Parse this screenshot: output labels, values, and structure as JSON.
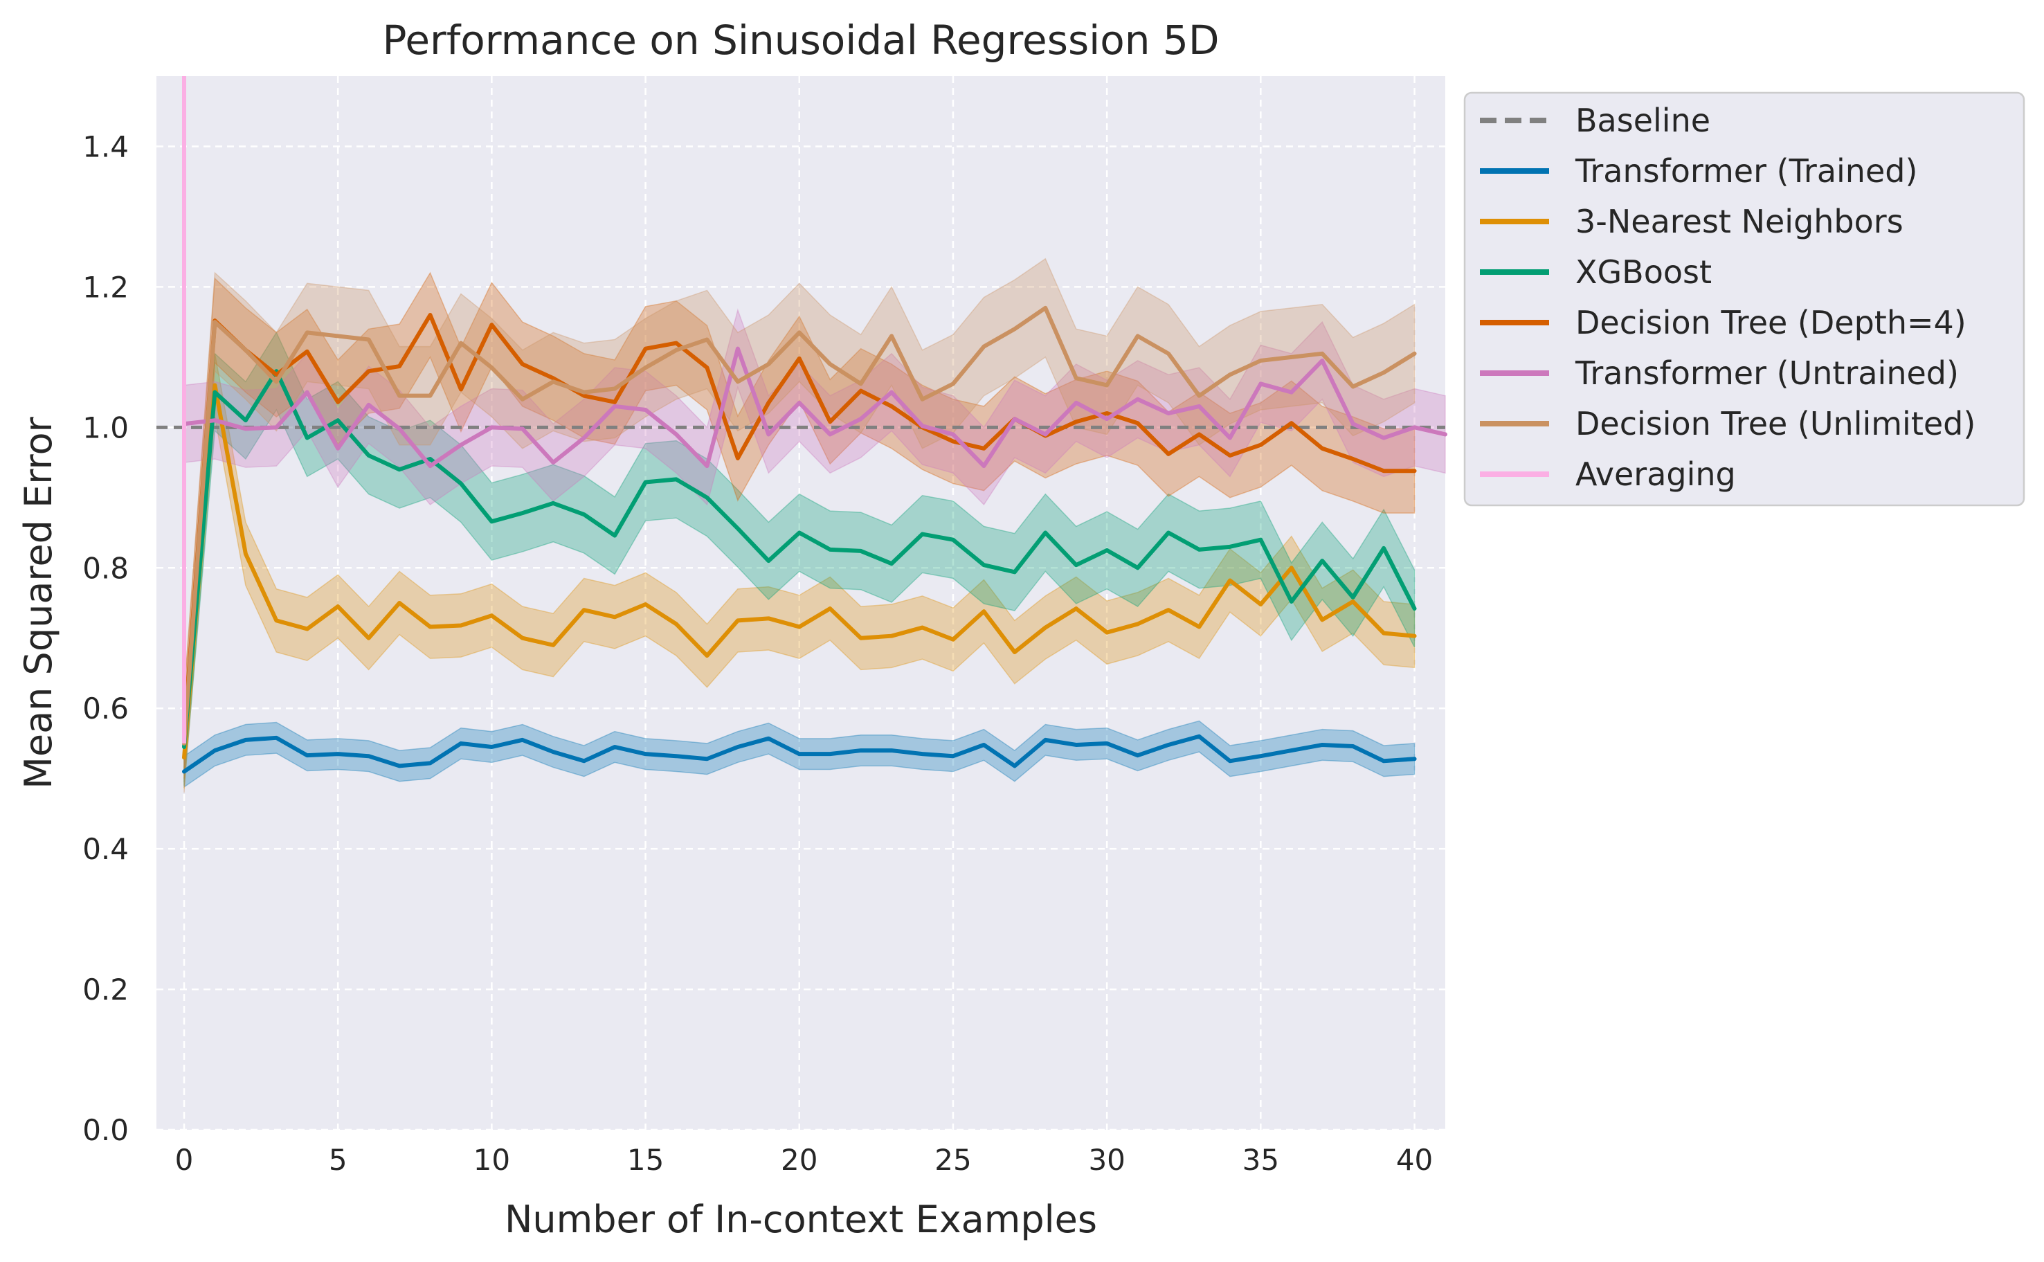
{
  "chart_data": {
    "type": "line",
    "title": "Performance on Sinusoidal Regression 5D",
    "xlabel": "Number of In-context Examples",
    "ylabel": "Mean Squared Error",
    "xlim": [
      -0.9,
      41.0
    ],
    "ylim": [
      0.0,
      1.5
    ],
    "xticks": [
      0,
      5,
      10,
      15,
      20,
      25,
      30,
      35,
      40
    ],
    "yticks": [
      0.0,
      0.2,
      0.4,
      0.6,
      0.8,
      1.0,
      1.2,
      1.4
    ],
    "xtick_labels": [
      "0",
      "5",
      "10",
      "15",
      "20",
      "25",
      "30",
      "35",
      "40"
    ],
    "ytick_labels": [
      "0.0",
      "0.2",
      "0.4",
      "0.6",
      "0.8",
      "1.0",
      "1.2",
      "1.4"
    ],
    "grid": true,
    "legend_position": "outside-top-right",
    "background_color": "#eaeaf2",
    "baseline": {
      "name": "Baseline",
      "value": 1.0,
      "color": "#808080",
      "style": "dashed"
    },
    "series": [
      {
        "name": "Transformer (Trained)",
        "color": "#0173b2",
        "band": 0.022,
        "values": [
          0.51,
          0.54,
          0.555,
          0.558,
          0.533,
          0.535,
          0.532,
          0.518,
          0.522,
          0.55,
          0.545,
          0.555,
          0.538,
          0.525,
          0.545,
          0.535,
          0.532,
          0.528,
          0.545,
          0.557,
          0.535,
          0.535,
          0.54,
          0.54,
          0.535,
          0.532,
          0.548,
          0.518,
          0.555,
          0.548,
          0.55,
          0.533,
          0.548,
          0.56,
          0.525,
          0.532,
          0.54,
          0.548,
          0.546,
          0.525,
          0.528
        ]
      },
      {
        "name": "3-Nearest Neighbors",
        "color": "#de8f05",
        "band": 0.045,
        "values": [
          0.53,
          1.06,
          0.82,
          0.725,
          0.713,
          0.745,
          0.7,
          0.75,
          0.716,
          0.718,
          0.732,
          0.7,
          0.69,
          0.74,
          0.73,
          0.748,
          0.72,
          0.675,
          0.725,
          0.728,
          0.716,
          0.742,
          0.7,
          0.703,
          0.715,
          0.698,
          0.738,
          0.68,
          0.715,
          0.742,
          0.708,
          0.72,
          0.74,
          0.716,
          0.782,
          0.748,
          0.8,
          0.726,
          0.752,
          0.707,
          0.703
        ]
      },
      {
        "name": "XGBoost",
        "color": "#029e73",
        "band": 0.055,
        "values": [
          0.545,
          1.05,
          1.01,
          1.08,
          0.985,
          1.01,
          0.96,
          0.94,
          0.955,
          0.92,
          0.866,
          0.878,
          0.892,
          0.876,
          0.846,
          0.922,
          0.926,
          0.9,
          0.856,
          0.81,
          0.85,
          0.826,
          0.824,
          0.806,
          0.848,
          0.84,
          0.804,
          0.794,
          0.85,
          0.804,
          0.825,
          0.8,
          0.85,
          0.826,
          0.83,
          0.84,
          0.752,
          0.81,
          0.758,
          0.828,
          0.742
        ]
      },
      {
        "name": "Decision Tree (Depth=4)",
        "color": "#d55e00",
        "band": 0.06,
        "values": [
          0.56,
          1.152,
          1.11,
          1.075,
          1.108,
          1.036,
          1.08,
          1.087,
          1.16,
          1.054,
          1.146,
          1.09,
          1.07,
          1.045,
          1.036,
          1.112,
          1.12,
          1.085,
          0.956,
          1.035,
          1.098,
          1.008,
          1.052,
          1.03,
          1.0,
          0.98,
          0.97,
          1.012,
          0.988,
          1.008,
          1.02,
          1.006,
          0.962,
          0.99,
          0.96,
          0.975,
          1.006,
          0.97,
          0.955,
          0.938,
          0.938
        ]
      },
      {
        "name": "Transformer (Untrained)",
        "color": "#cc78bc",
        "band": 0.055,
        "values": [
          1.005,
          1.01,
          0.998,
          1.0,
          1.05,
          0.97,
          1.032,
          0.998,
          0.945,
          0.975,
          1.0,
          0.998,
          0.95,
          0.985,
          1.03,
          1.025,
          0.99,
          0.945,
          1.112,
          0.99,
          1.035,
          0.99,
          1.012,
          1.05,
          1.002,
          0.99,
          0.945,
          1.012,
          0.99,
          1.035,
          1.012,
          1.04,
          1.02,
          1.03,
          0.985,
          1.062,
          1.05,
          1.095,
          1.005,
          0.985,
          1.0,
          0.99
        ]
      },
      {
        "name": "Decision Tree (Unlimited)",
        "color": "#ca9161",
        "band": 0.07,
        "values": [
          0.55,
          1.15,
          1.11,
          1.065,
          1.135,
          1.13,
          1.125,
          1.045,
          1.045,
          1.12,
          1.085,
          1.04,
          1.065,
          1.05,
          1.055,
          1.085,
          1.11,
          1.125,
          1.065,
          1.09,
          1.135,
          1.09,
          1.062,
          1.13,
          1.04,
          1.062,
          1.115,
          1.14,
          1.17,
          1.07,
          1.06,
          1.13,
          1.105,
          1.045,
          1.075,
          1.095,
          1.1,
          1.105,
          1.058,
          1.078,
          1.105
        ]
      },
      {
        "name": "Averaging",
        "color": "#fbafe4",
        "band": 0,
        "values": [
          0.55
        ]
      }
    ]
  }
}
